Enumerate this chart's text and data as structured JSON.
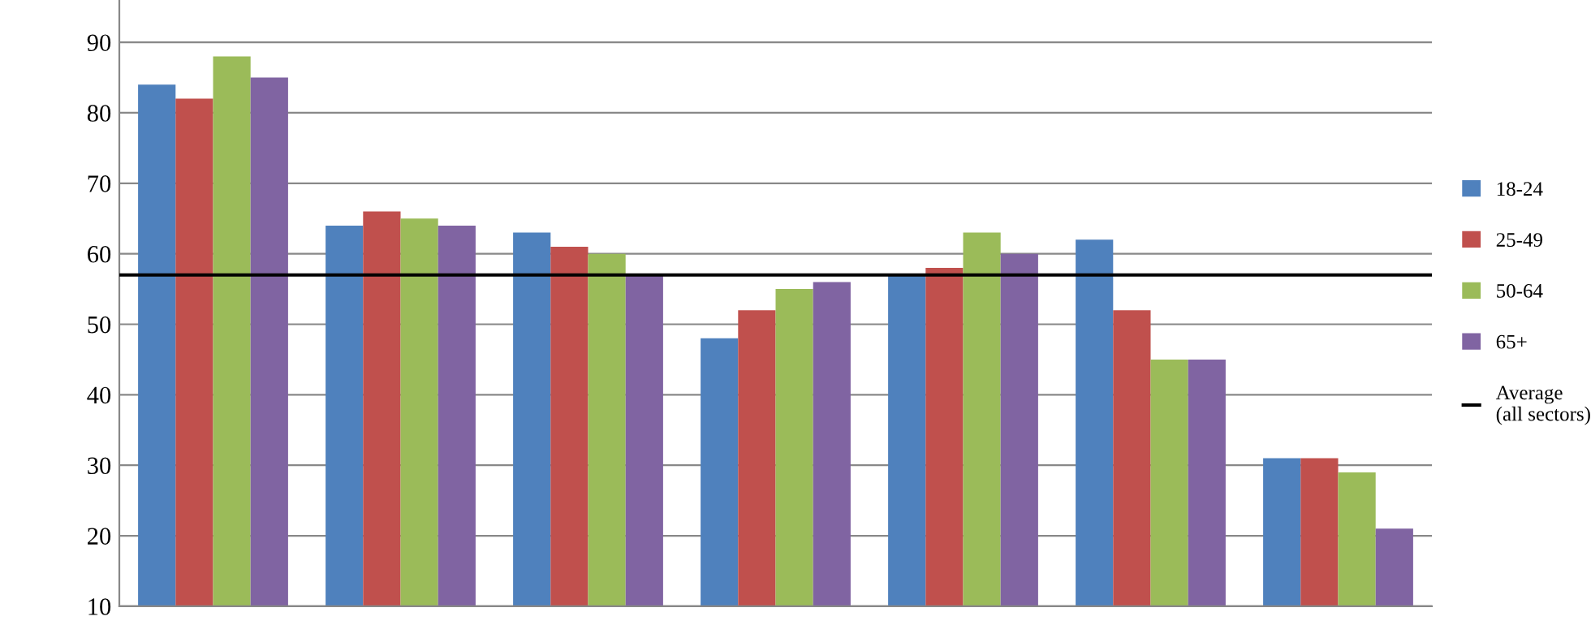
{
  "chart_data": {
    "type": "bar",
    "categories": [
      null,
      null,
      null,
      null,
      null,
      null,
      null
    ],
    "series": [
      {
        "name": "18-24",
        "color": "#4f81bd",
        "values": [
          84,
          64,
          63,
          48,
          57,
          62,
          31
        ]
      },
      {
        "name": "25-49",
        "color": "#c0504d",
        "values": [
          82,
          66,
          61,
          52,
          58,
          52,
          31
        ]
      },
      {
        "name": "50-64",
        "color": "#9bbb59",
        "values": [
          88,
          65,
          60,
          55,
          63,
          45,
          29
        ]
      },
      {
        "name": "65+",
        "color": "#8064a2",
        "values": [
          85,
          64,
          57,
          56,
          60,
          45,
          21
        ]
      }
    ],
    "ylim": [
      10,
      96
    ],
    "yticks": [
      10,
      20,
      30,
      40,
      50,
      60,
      70,
      80,
      90
    ],
    "grid": "y",
    "legend": "right",
    "ref_lines": [
      {
        "axis": "y",
        "value": 57,
        "label": "Average\n(all sectors)",
        "color": "#000000"
      }
    ]
  }
}
